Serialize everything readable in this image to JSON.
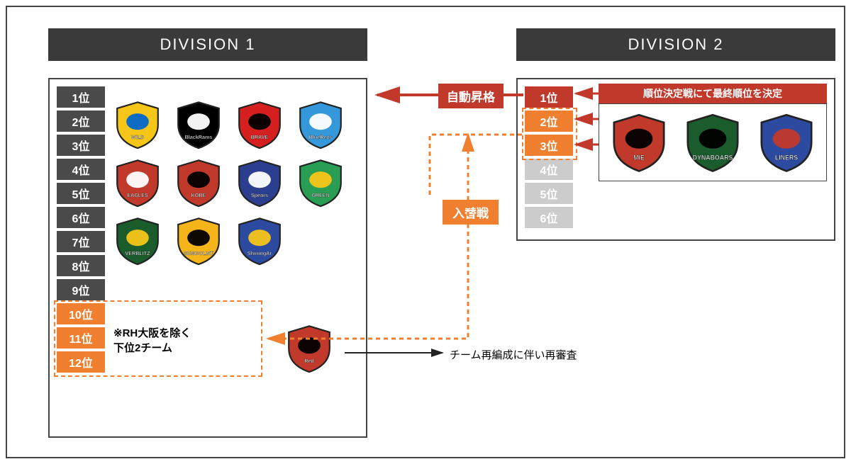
{
  "divisions": {
    "d1": {
      "title": "DIVISION 1"
    },
    "d2": {
      "title": "DIVISION 2"
    }
  },
  "ranks_d1": [
    {
      "label": "1位",
      "style": "dark"
    },
    {
      "label": "2位",
      "style": "dark"
    },
    {
      "label": "3位",
      "style": "dark"
    },
    {
      "label": "4位",
      "style": "dark"
    },
    {
      "label": "5位",
      "style": "dark"
    },
    {
      "label": "6位",
      "style": "dark"
    },
    {
      "label": "7位",
      "style": "dark"
    },
    {
      "label": "8位",
      "style": "dark"
    },
    {
      "label": "9位",
      "style": "dark"
    },
    {
      "label": "10位",
      "style": "orange"
    },
    {
      "label": "11位",
      "style": "orange"
    },
    {
      "label": "12位",
      "style": "orange"
    }
  ],
  "ranks_d2": [
    {
      "label": "1位",
      "style": "red"
    },
    {
      "label": "2位",
      "style": "orange"
    },
    {
      "label": "3位",
      "style": "orange"
    },
    {
      "label": "4位",
      "style": "gray"
    },
    {
      "label": "5位",
      "style": "gray"
    },
    {
      "label": "6位",
      "style": "gray"
    }
  ],
  "d1_note_line1": "※RH大阪を除く",
  "d1_note_line2": "下位2チーム",
  "auto_promo": "自動昇格",
  "replacement": "入替戦",
  "playoff_title": "順位決定戦にて最終順位を決定",
  "reassess": "チーム再編成に伴い再審査",
  "d1_teams": [
    {
      "name": "Wild Knights",
      "c1": "#f5c518",
      "c2": "#0066cc",
      "text": "WILD KNIGHTS"
    },
    {
      "name": "Black Rams Tokyo",
      "c1": "#000000",
      "c2": "#ffffff",
      "text": "BlackRams"
    },
    {
      "name": "Brave Lupus",
      "c1": "#d62020",
      "c2": "#000000",
      "text": "BRAVE LUPUS"
    },
    {
      "name": "Shizuoka BlueRevs",
      "c1": "#3498db",
      "c2": "#ffffff",
      "text": "BlueRevs"
    },
    {
      "name": "Yokohama Eagles",
      "c1": "#c0392b",
      "c2": "#ffffff",
      "text": "EAGLES"
    },
    {
      "name": "Kobe Steelers",
      "c1": "#c0392b",
      "c2": "#000000",
      "text": "KOBE STEELERS"
    },
    {
      "name": "Spears",
      "c1": "#2c3e8f",
      "c2": "#ffffff",
      "text": "Spears"
    },
    {
      "name": "NEC Green Rockets",
      "c1": "#2a9d54",
      "c2": "#f5c518",
      "text": "GREEN ROCKETS"
    },
    {
      "name": "Verblitz",
      "c1": "#1a5c2b",
      "c2": "#f5c518",
      "text": "VERBLITZ"
    },
    {
      "name": "Sungoliath",
      "c1": "#f5b518",
      "c2": "#000000",
      "text": "SUNGOLIATH"
    },
    {
      "name": "Shining Arcs",
      "c1": "#2c4a9f",
      "c2": "#f5c518",
      "text": "ShiningArcs"
    }
  ],
  "rh_team": {
    "name": "Red Hurricanes",
    "c1": "#c0392b",
    "c2": "#000000",
    "text": "Red Hurricanes OSAKA"
  },
  "playoff_teams": [
    {
      "name": "Mie Honda Heat",
      "c1": "#c0392b",
      "c2": "#000000",
      "text": "MIE Honda HEAT"
    },
    {
      "name": "Dynaboars",
      "c1": "#1a5c2b",
      "c2": "#000000",
      "text": "DYNABOARS"
    },
    {
      "name": "Liners",
      "c1": "#2c4a9f",
      "c2": "#c0392b",
      "text": "LINERS"
    }
  ],
  "colors": {
    "rank_dark": "#4a4a4a",
    "rank_orange": "#f08030",
    "rank_red": "#c0392b",
    "rank_gray": "#cccccc",
    "arrow_red": "#c0392b",
    "arrow_orange": "#f08030",
    "arrow_black": "#222222"
  }
}
